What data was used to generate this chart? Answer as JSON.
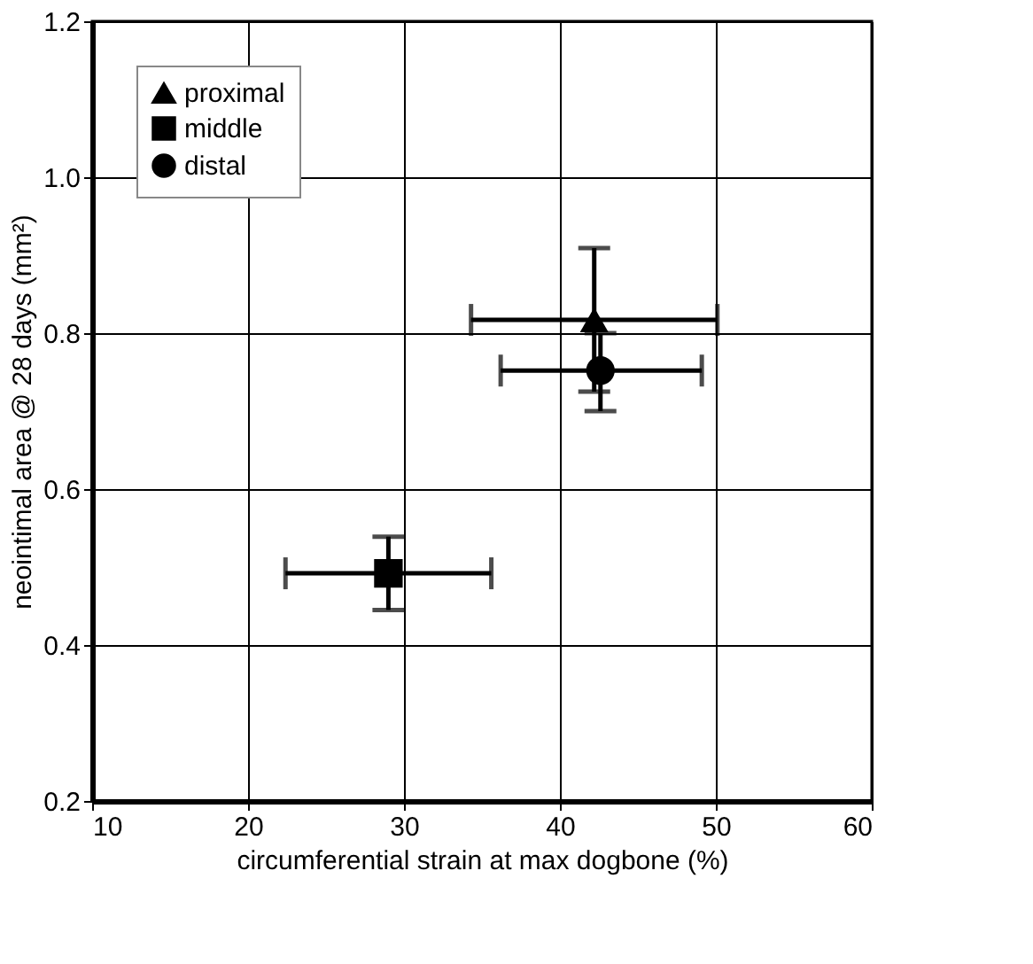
{
  "chart_data": {
    "type": "scatter",
    "xlabel": "circumferential strain at max dogbone (%)",
    "ylabel": "neointimal area @ 28 days (mm²)",
    "xlim": [
      10,
      60
    ],
    "xticks": [
      10,
      20,
      30,
      40,
      50,
      60
    ],
    "ylim": [
      0.2,
      1.2
    ],
    "yticks": [
      0.2,
      0.4,
      0.6,
      0.8,
      {
        "value": 1,
        "label": "1.0"
      },
      1.2
    ],
    "grid": true,
    "legend": "top left",
    "series": [
      {
        "name": "proximal",
        "color": "#000000",
        "marker": "triangle",
        "x": [
          42.2
        ],
        "values": [
          0.817
        ],
        "errors": [
          [
            0.725,
            0.909
          ]
        ],
        "xerrors": [
          [
            34.3,
            50.1
          ]
        ]
      },
      {
        "name": "middle",
        "color": "#000000",
        "marker": "square",
        "x": [
          29.0
        ],
        "values": [
          0.492
        ],
        "errors": [
          [
            0.445,
            0.539
          ]
        ],
        "xerrors": [
          [
            22.4,
            35.6
          ]
        ]
      },
      {
        "name": "distal",
        "color": "#000000",
        "marker": "circle",
        "x": [
          42.6
        ],
        "values": [
          0.752
        ],
        "errors": [
          [
            0.7,
            0.8
          ]
        ],
        "xerrors": [
          [
            36.2,
            49.1
          ]
        ]
      }
    ]
  }
}
